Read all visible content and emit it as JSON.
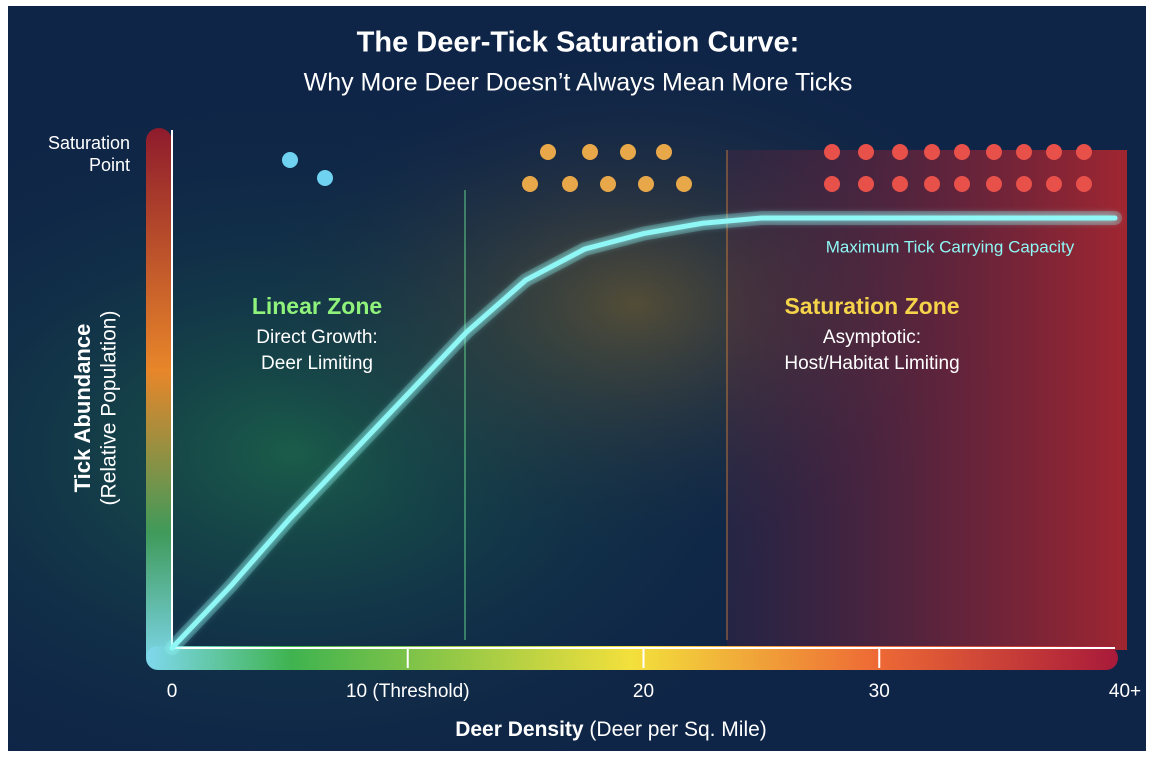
{
  "chart_data": {
    "type": "line",
    "title": "The Deer-Tick Saturation Curve:",
    "subtitle": "Why More Deer Doesn’t Always Mean More Ticks",
    "x_label": "Deer Density",
    "x_label_note": "(Deer per Sq. Mile)",
    "y_label": "Tick Abundance",
    "y_label_note": "(Relative Population)",
    "x": [
      0,
      2.5,
      5,
      7.5,
      10,
      12.5,
      15,
      17.5,
      20,
      22.5,
      25,
      30,
      35,
      40
    ],
    "values": [
      0,
      12,
      25,
      37,
      49,
      61,
      71,
      77,
      80,
      82,
      83,
      83,
      83,
      83
    ],
    "color": "#8ff7f5",
    "xlim": [
      0,
      40
    ],
    "xticks": [
      0,
      {
        "value": 10,
        "label": "10 (Threshold)"
      },
      20,
      30,
      {
        "value": 40,
        "label": "40+"
      }
    ],
    "ylim": [
      0,
      100
    ],
    "yticks": [
      {
        "value": 100,
        "label": "Saturation Point"
      }
    ],
    "annotations": {
      "capacity": "Maximum Tick Carrying Capacity",
      "linear_zone": {
        "title": "Linear Zone",
        "line1": "Direct Growth:",
        "line2": "Deer Limiting"
      },
      "saturation_zone": {
        "title": "Saturation Zone",
        "line1": "Asymptotic:",
        "line2": "Host/Habitat Limiting"
      }
    }
  }
}
